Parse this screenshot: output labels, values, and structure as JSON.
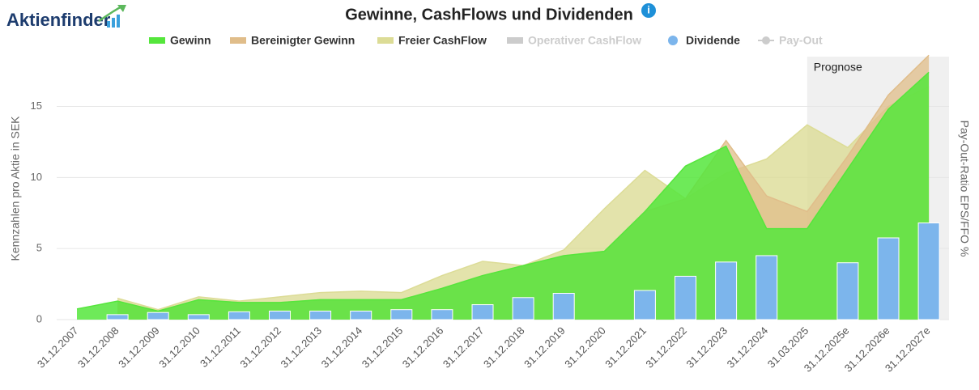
{
  "chart_data": {
    "type": "area",
    "logo": "Aktienfinder",
    "title": "Gewinne, CashFlows und Dividenden",
    "info_icon": "i",
    "y_label": "Kennzahlen pro Aktie in SEK",
    "y2_label": "Pay-Out-Ratio EPS/FFO %",
    "forecast_label": "Prognose",
    "forecast_start": "31.03.2025",
    "categories": [
      "31.12.2007",
      "31.12.2008",
      "31.12.2009",
      "31.12.2010",
      "31.12.2011",
      "31.12.2012",
      "31.12.2013",
      "31.12.2014",
      "31.12.2015",
      "31.12.2016",
      "31.12.2017",
      "31.12.2018",
      "31.12.2019",
      "31.12.2020",
      "31.12.2021",
      "31.12.2022",
      "31.12.2023",
      "31.12.2024",
      "31.03.2025",
      "31.12.2025e",
      "31.12.2026e",
      "31.12.2027e"
    ],
    "series": [
      {
        "name": "Gewinn",
        "color": "#55e63c",
        "type": "area",
        "values": [
          0.75,
          1.3,
          0.6,
          1.4,
          1.2,
          1.2,
          1.4,
          1.4,
          1.4,
          2.2,
          3.1,
          3.8,
          4.5,
          4.8,
          7.6,
          10.8,
          12.2,
          6.4,
          6.4,
          10.6,
          14.8,
          17.4
        ]
      },
      {
        "name": "Bereinigter Gewinn",
        "color": "#e0bd8a",
        "type": "area",
        "values": [
          null,
          1.3,
          0.6,
          1.4,
          1.2,
          1.2,
          1.4,
          1.4,
          1.4,
          2.2,
          3.1,
          3.8,
          4.5,
          4.8,
          7.6,
          8.5,
          12.6,
          8.7,
          7.6,
          11.5,
          15.8,
          18.6
        ]
      },
      {
        "name": "Freier CashFlow",
        "color": "#dcdc96",
        "type": "area",
        "values": [
          null,
          1.5,
          0.7,
          1.6,
          1.3,
          1.6,
          1.9,
          2.0,
          1.9,
          3.1,
          4.1,
          3.8,
          4.9,
          7.8,
          10.5,
          8.5,
          10.3,
          11.3,
          13.7,
          12.1,
          15.0,
          16.4
        ]
      },
      {
        "name": "Dividende",
        "color": "#7cb5ec",
        "type": "bar",
        "values": [
          null,
          0.35,
          0.5,
          0.35,
          0.55,
          0.6,
          0.6,
          0.6,
          0.7,
          0.7,
          1.05,
          1.55,
          1.85,
          null,
          2.05,
          3.05,
          4.05,
          4.5,
          null,
          4.0,
          5.75,
          6.8
        ]
      }
    ],
    "hidden_series": [
      {
        "name": "Operativer CashFlow",
        "color": "#cccccc"
      },
      {
        "name": "Pay-Out",
        "color": "#cccccc"
      }
    ],
    "ylim": [
      0,
      18.5
    ],
    "yticks": [
      0,
      5,
      10,
      15
    ],
    "grid": true
  }
}
